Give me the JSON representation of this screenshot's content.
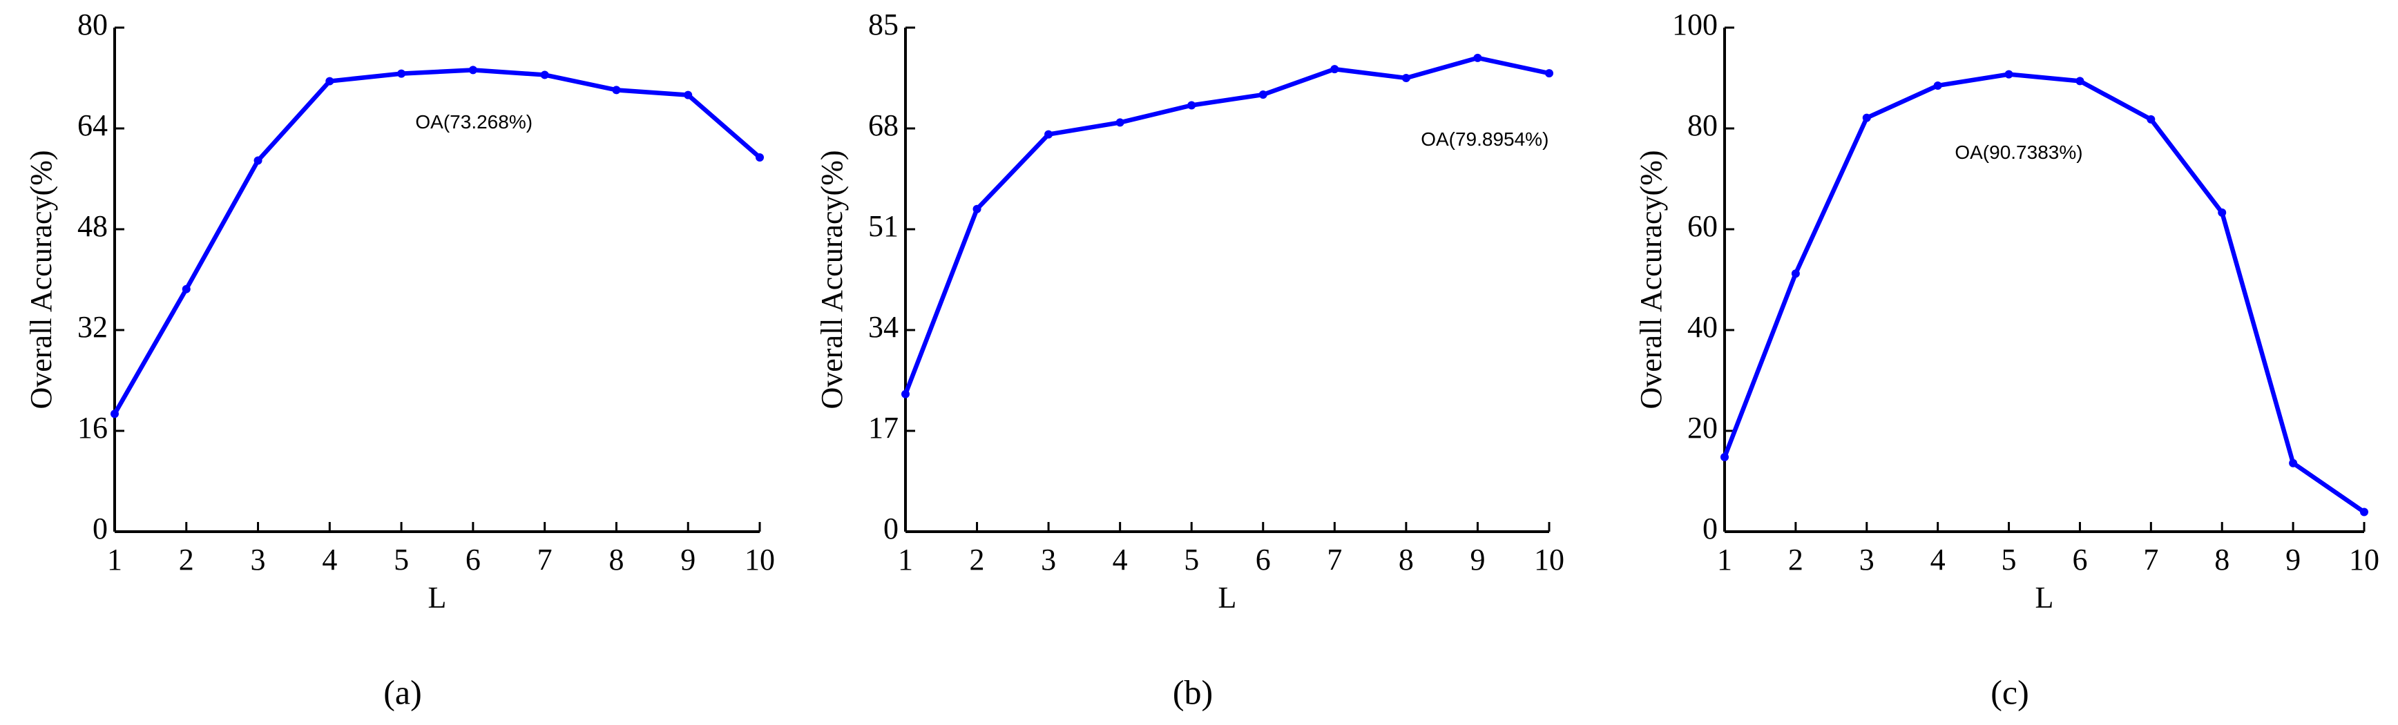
{
  "chart_data": [
    {
      "type": "line",
      "caption": "(a)",
      "xlabel": "L",
      "ylabel": "Overall Accuracy(%)",
      "annotation": "OA(73.268%)",
      "x": [
        1,
        2,
        3,
        4,
        5,
        6,
        7,
        8,
        9,
        10
      ],
      "xlim": [
        1,
        10
      ],
      "xticks": [
        1,
        2,
        3,
        4,
        5,
        6,
        7,
        8,
        9,
        10
      ],
      "ylim": [
        0,
        80
      ],
      "yticks": [
        0,
        16,
        32,
        48,
        64,
        80
      ],
      "color": "#0000ff",
      "values": [
        18.7,
        38.5,
        58.9,
        71.5,
        72.7,
        73.268,
        72.5,
        70.1,
        69.3,
        59.4
      ]
    },
    {
      "type": "line",
      "caption": "(b)",
      "xlabel": "L",
      "ylabel": "Overall Accuracy(%)",
      "annotation": "OA(79.8954%)",
      "x": [
        1,
        2,
        3,
        4,
        5,
        6,
        7,
        8,
        9,
        10
      ],
      "xlim": [
        1,
        10
      ],
      "xticks": [
        1,
        2,
        3,
        4,
        5,
        6,
        7,
        8,
        9,
        10
      ],
      "ylim": [
        0,
        85
      ],
      "yticks": [
        0,
        17,
        34,
        51,
        68,
        85
      ],
      "color": "#0000ff",
      "values": [
        23.2,
        54.4,
        67.0,
        69.0,
        71.9,
        73.7,
        78.0,
        76.5,
        79.8954,
        77.3
      ]
    },
    {
      "type": "line",
      "caption": "(c)",
      "xlabel": "L",
      "ylabel": "Overall Accuracy(%)",
      "annotation": "OA(90.7383%)",
      "x": [
        1,
        2,
        3,
        4,
        5,
        6,
        7,
        8,
        9,
        10
      ],
      "xlim": [
        1,
        10
      ],
      "xticks": [
        1,
        2,
        3,
        4,
        5,
        6,
        7,
        8,
        9,
        10
      ],
      "ylim": [
        0,
        100
      ],
      "yticks": [
        0,
        20,
        40,
        60,
        80,
        100
      ],
      "color": "#0000ff",
      "values": [
        14.8,
        51.2,
        82.1,
        88.5,
        90.7383,
        89.4,
        81.8,
        63.3,
        13.6,
        3.9
      ]
    }
  ]
}
